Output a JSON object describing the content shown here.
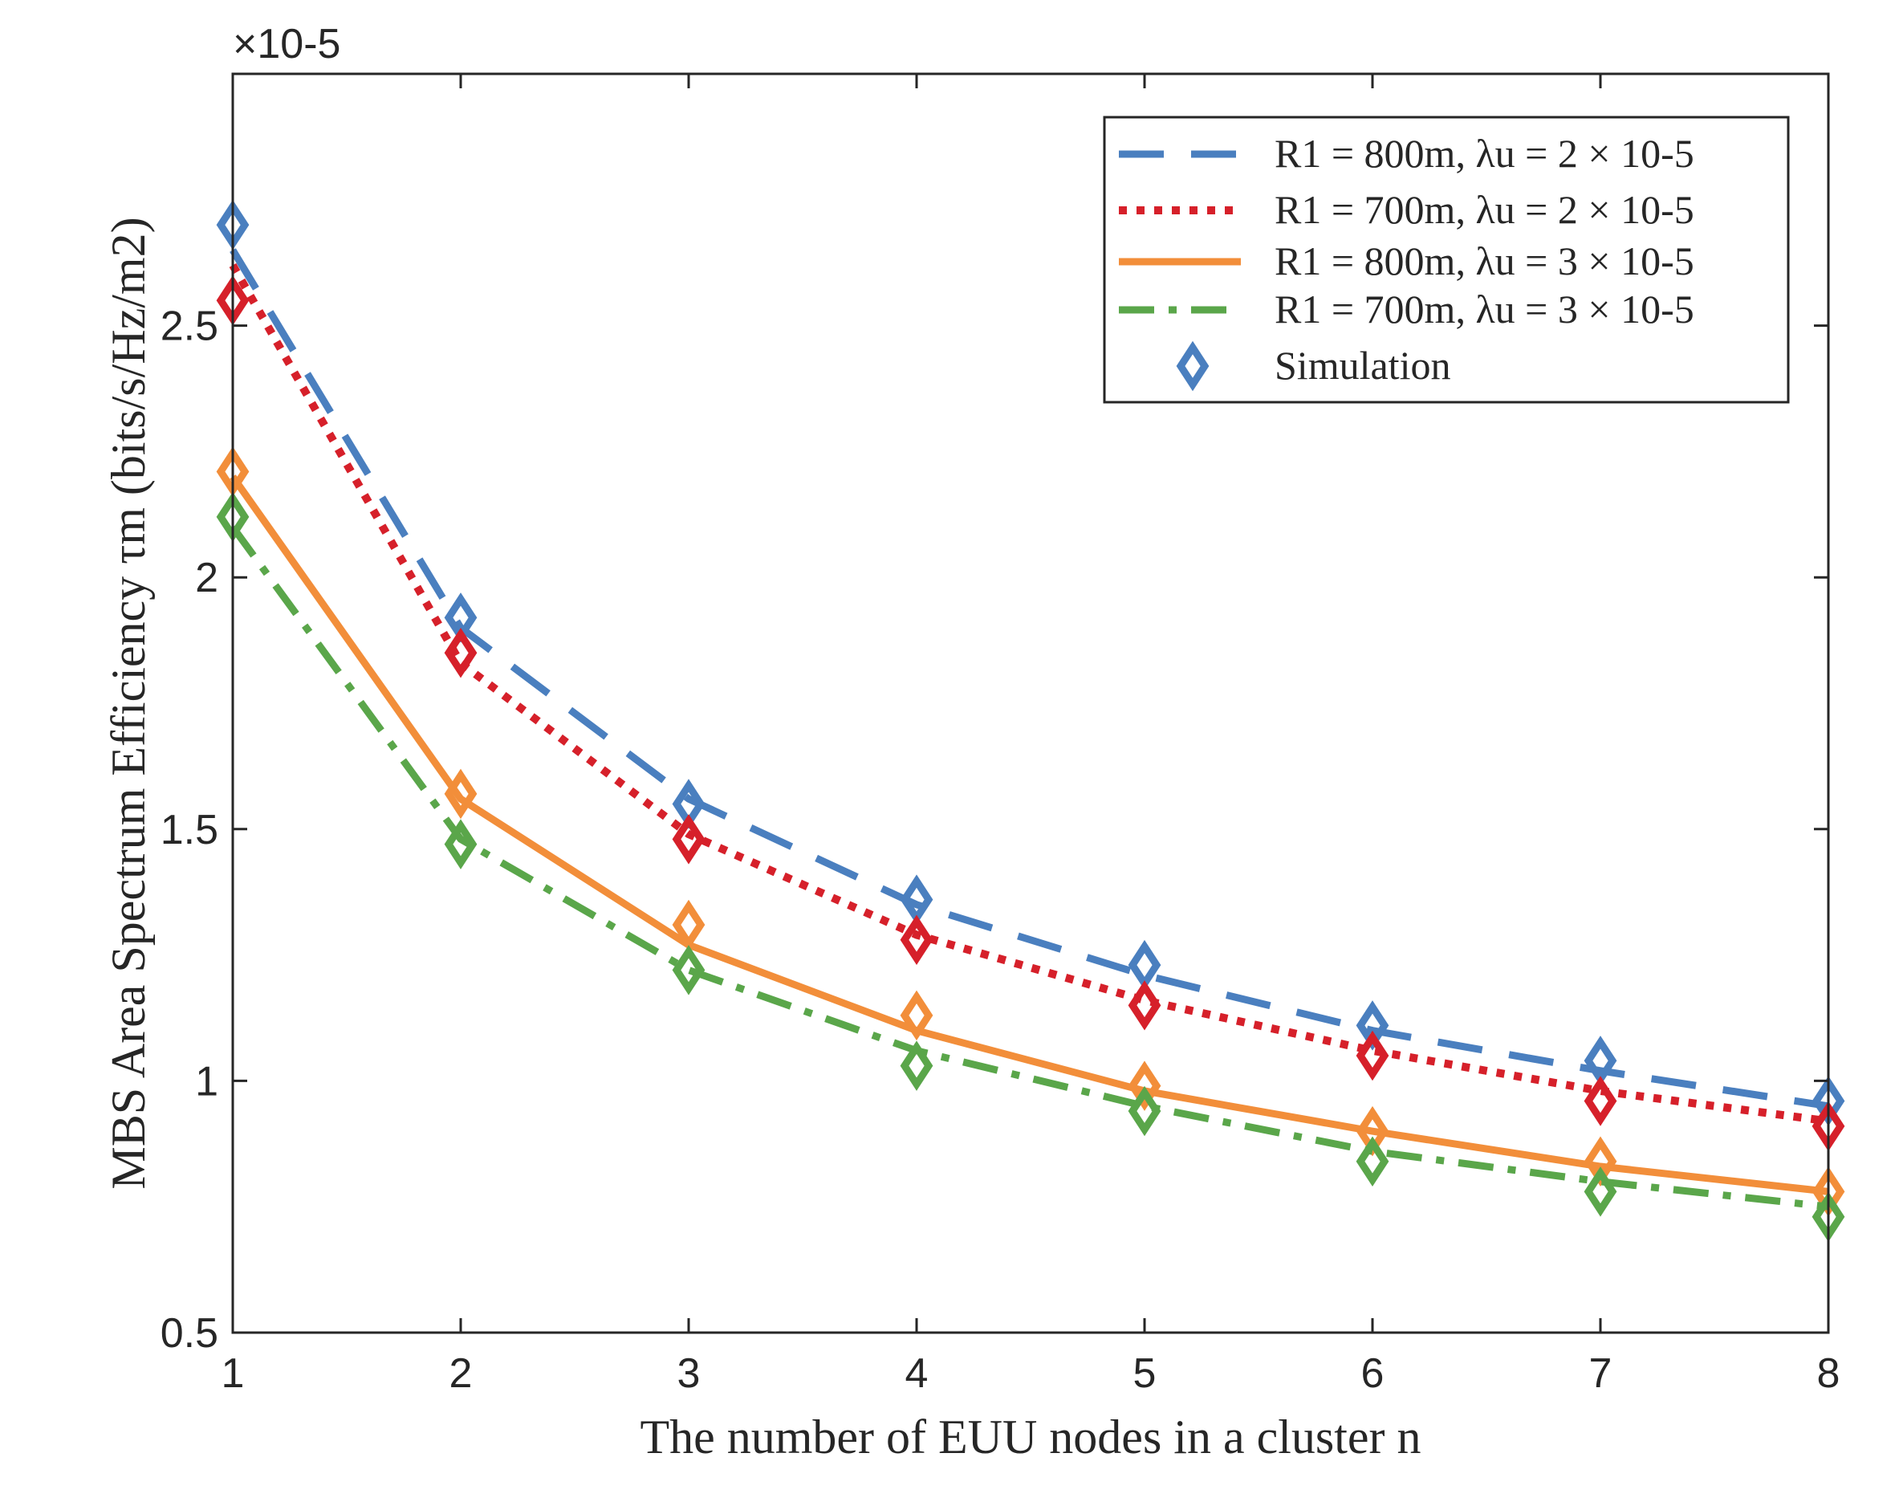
{
  "chart_data": {
    "type": "line",
    "title": "",
    "xlabel": "The number of EUU nodes in a cluster n",
    "ylabel": "MBS Area Spectrum Efficiency τm (bits/s/Hz/m2)",
    "y_multiplier": "×10-5",
    "x": [
      1,
      2,
      3,
      4,
      5,
      6,
      7,
      8
    ],
    "xlim": [
      1,
      8
    ],
    "ylim": [
      0.5,
      3.0
    ],
    "x_ticks": [
      "1",
      "2",
      "3",
      "4",
      "5",
      "6",
      "7",
      "8"
    ],
    "y_ticks": [
      "0.5",
      "1",
      "1.5",
      "2",
      "2.5"
    ],
    "y_tick_values": [
      0.5,
      1.0,
      1.5,
      2.0,
      2.5
    ],
    "grid": false,
    "legend_position": "top-right",
    "series": [
      {
        "name": "R1 = 800m, λu = 2 × 10-5",
        "color": "#4a7fbf",
        "style": "dashed",
        "values": [
          2.65,
          1.9,
          1.56,
          1.35,
          1.21,
          1.1,
          1.02,
          0.95
        ],
        "sim_values": [
          2.7,
          1.92,
          1.55,
          1.36,
          1.23,
          1.11,
          1.04,
          0.96
        ]
      },
      {
        "name": "R1 = 700m, λu = 2 × 10-5",
        "color": "#d6202a",
        "style": "dotted",
        "values": [
          2.62,
          1.83,
          1.49,
          1.29,
          1.16,
          1.06,
          0.98,
          0.92
        ],
        "sim_values": [
          2.55,
          1.85,
          1.48,
          1.28,
          1.15,
          1.05,
          0.96,
          0.91
        ]
      },
      {
        "name": "R1 = 800m, λu = 3 × 10-5",
        "color": "#f28e3a",
        "style": "solid",
        "values": [
          2.2,
          1.56,
          1.27,
          1.1,
          0.98,
          0.9,
          0.83,
          0.78
        ],
        "sim_values": [
          2.21,
          1.57,
          1.31,
          1.13,
          0.99,
          0.9,
          0.84,
          0.78
        ]
      },
      {
        "name": "R1 = 700m, λu = 3 × 10-5",
        "color": "#5aa64a",
        "style": "dashdot",
        "values": [
          2.1,
          1.48,
          1.22,
          1.06,
          0.95,
          0.86,
          0.8,
          0.75
        ],
        "sim_values": [
          2.12,
          1.47,
          1.22,
          1.03,
          0.94,
          0.84,
          0.78,
          0.73
        ]
      }
    ],
    "legend_simulation_label": "Simulation",
    "legend_simulation_color": "#4a7fbf"
  }
}
